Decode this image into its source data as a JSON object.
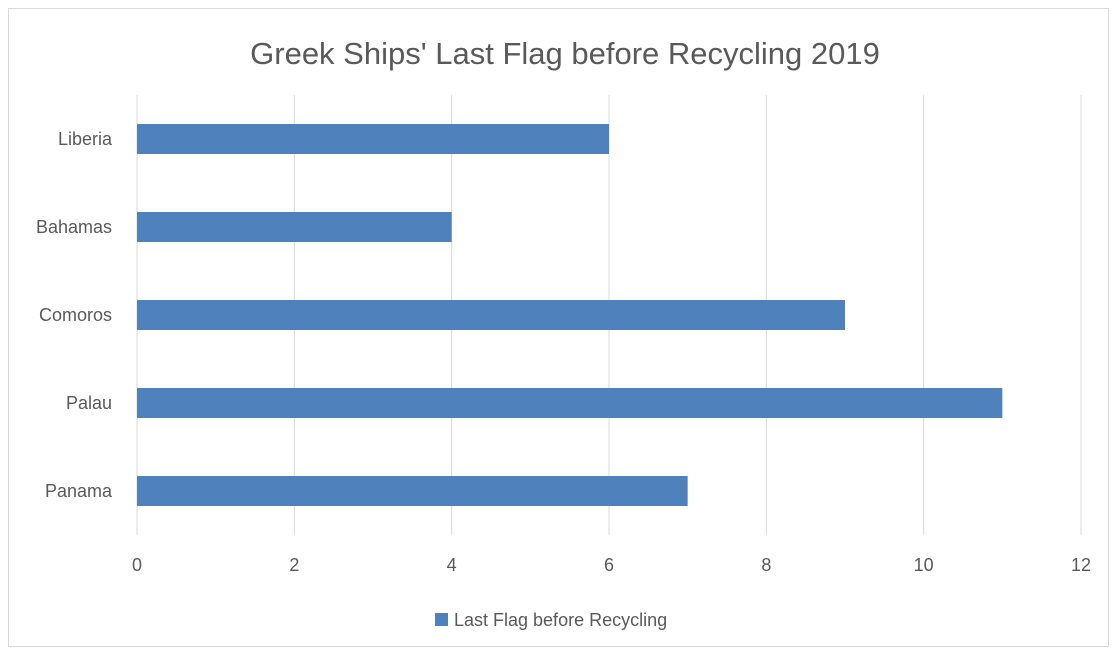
{
  "chart_data": {
    "type": "bar",
    "orientation": "horizontal",
    "title": "Greek Ships' Last Flag before Recycling 2019",
    "xlabel": "",
    "ylabel": "",
    "categories": [
      "Liberia",
      "Bahamas",
      "Comoros",
      "Palau",
      "Panama"
    ],
    "series": [
      {
        "name": "Last Flag before Recycling",
        "values": [
          6,
          4,
          9,
          11,
          7
        ],
        "color": "#4f81bd"
      }
    ],
    "xlim": [
      0,
      12
    ],
    "xticks": [
      "0",
      "2",
      "4",
      "6",
      "8",
      "10",
      "12"
    ],
    "grid": "vertical",
    "legend_position": "bottom"
  }
}
